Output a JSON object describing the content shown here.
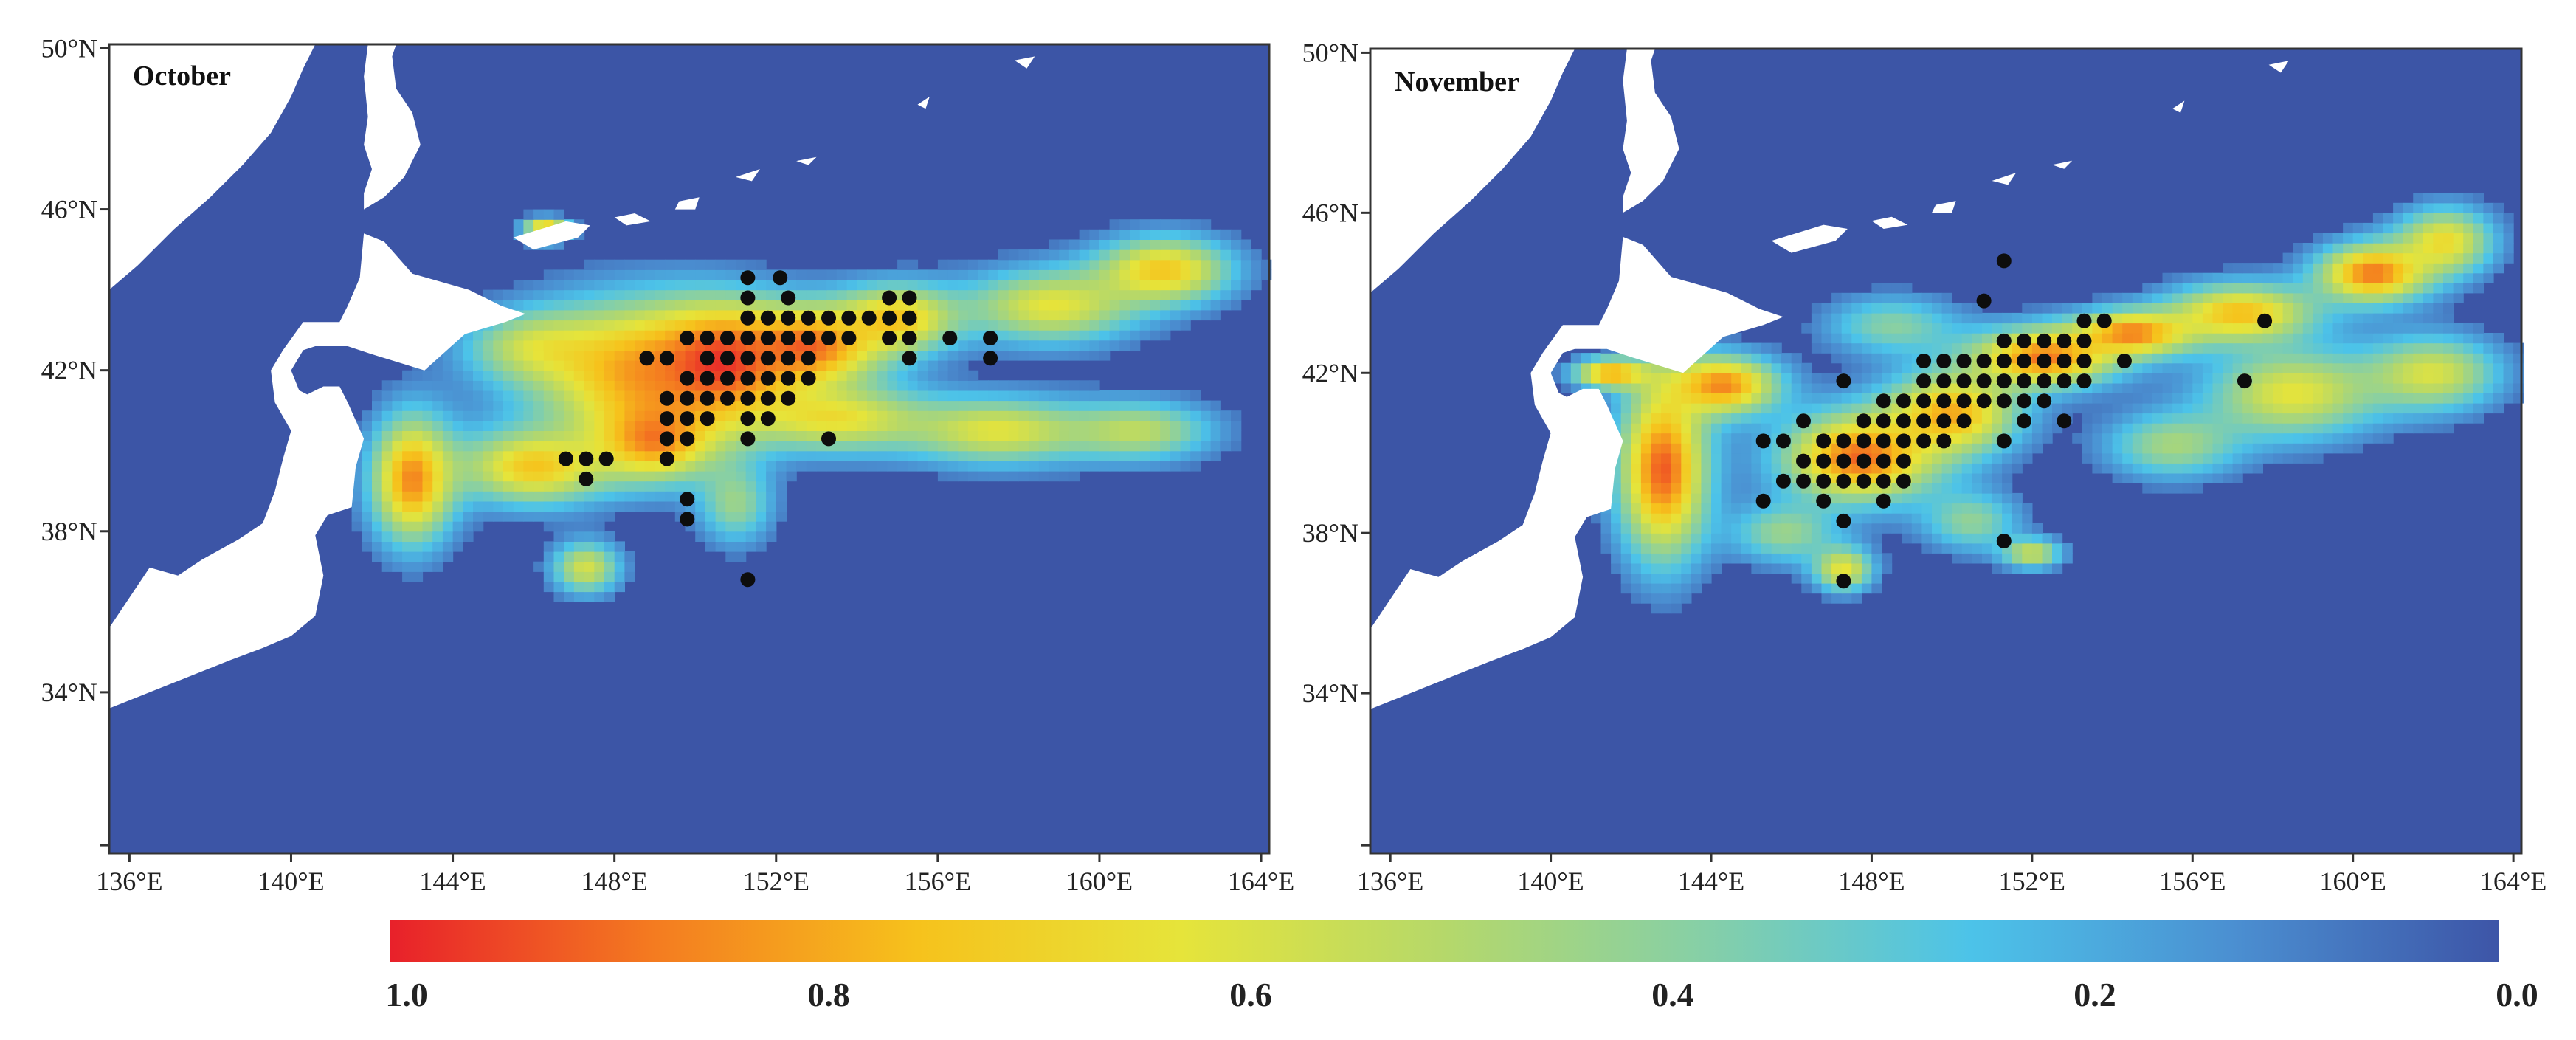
{
  "panels": [
    {
      "title": "October",
      "lon_range": [
        135.5,
        164.2
      ],
      "lat_range": [
        30.0,
        50.1
      ],
      "x_ticks": [
        136,
        140,
        144,
        148,
        152,
        156,
        160,
        164
      ],
      "x_tick_labels": [
        "136°E",
        "140°E",
        "144°E",
        "148°E",
        "152°E",
        "156°E",
        "160°E",
        "164°E"
      ],
      "y_ticks": [
        34,
        38,
        42,
        46,
        50
      ],
      "y_tick_labels": [
        "34°N",
        "38°N",
        "42°N",
        "46°N",
        "50°N"
      ],
      "blobs": [
        {
          "lon": 148.5,
          "lat": 42.0,
          "rx": 3.0,
          "ry": 1.9,
          "v": 0.75
        },
        {
          "lon": 150.6,
          "lat": 42.2,
          "rx": 2.0,
          "ry": 1.5,
          "v": 0.95
        },
        {
          "lon": 152.8,
          "lat": 42.6,
          "rx": 2.0,
          "ry": 1.1,
          "v": 0.88
        },
        {
          "lon": 155.0,
          "lat": 43.3,
          "rx": 1.6,
          "ry": 0.9,
          "v": 0.7
        },
        {
          "lon": 158.8,
          "lat": 43.6,
          "rx": 2.3,
          "ry": 1.0,
          "v": 0.62
        },
        {
          "lon": 161.6,
          "lat": 44.5,
          "rx": 1.8,
          "ry": 0.9,
          "v": 0.72
        },
        {
          "lon": 143.0,
          "lat": 39.3,
          "rx": 1.1,
          "ry": 1.7,
          "v": 0.85
        },
        {
          "lon": 146.0,
          "lat": 39.6,
          "rx": 2.0,
          "ry": 1.0,
          "v": 0.72
        },
        {
          "lon": 149.0,
          "lat": 40.3,
          "rx": 1.6,
          "ry": 1.1,
          "v": 0.82
        },
        {
          "lon": 153.5,
          "lat": 40.8,
          "rx": 2.5,
          "ry": 0.9,
          "v": 0.62
        },
        {
          "lon": 157.5,
          "lat": 40.5,
          "rx": 2.4,
          "ry": 0.9,
          "v": 0.6
        },
        {
          "lon": 161.0,
          "lat": 40.5,
          "rx": 2.0,
          "ry": 0.8,
          "v": 0.5
        },
        {
          "lon": 147.3,
          "lat": 37.1,
          "rx": 0.9,
          "ry": 0.7,
          "v": 0.58
        },
        {
          "lon": 151.0,
          "lat": 38.7,
          "rx": 1.0,
          "ry": 1.1,
          "v": 0.42
        },
        {
          "lon": 146.3,
          "lat": 45.5,
          "rx": 0.6,
          "ry": 0.3,
          "v": 0.8
        },
        {
          "lon": 146.0,
          "lat": 42.6,
          "rx": 1.8,
          "ry": 0.9,
          "v": 0.45
        }
      ],
      "dots": [
        [
          151.3,
          44.3
        ],
        [
          152.1,
          44.3
        ],
        [
          151.3,
          43.8
        ],
        [
          152.3,
          43.8
        ],
        [
          154.8,
          43.8
        ],
        [
          155.3,
          43.8
        ],
        [
          151.3,
          43.3
        ],
        [
          151.8,
          43.3
        ],
        [
          152.3,
          43.3
        ],
        [
          152.8,
          43.3
        ],
        [
          153.3,
          43.3
        ],
        [
          153.8,
          43.3
        ],
        [
          154.3,
          43.3
        ],
        [
          154.8,
          43.3
        ],
        [
          155.3,
          43.3
        ],
        [
          149.8,
          42.8
        ],
        [
          150.3,
          42.8
        ],
        [
          150.8,
          42.8
        ],
        [
          151.3,
          42.8
        ],
        [
          151.8,
          42.8
        ],
        [
          152.3,
          42.8
        ],
        [
          152.8,
          42.8
        ],
        [
          153.3,
          42.8
        ],
        [
          153.8,
          42.8
        ],
        [
          154.8,
          42.8
        ],
        [
          155.3,
          42.8
        ],
        [
          156.3,
          42.8
        ],
        [
          157.3,
          42.8
        ],
        [
          148.8,
          42.3
        ],
        [
          149.3,
          42.3
        ],
        [
          150.3,
          42.3
        ],
        [
          150.8,
          42.3
        ],
        [
          151.3,
          42.3
        ],
        [
          151.8,
          42.3
        ],
        [
          152.3,
          42.3
        ],
        [
          152.8,
          42.3
        ],
        [
          155.3,
          42.3
        ],
        [
          157.3,
          42.3
        ],
        [
          149.8,
          41.8
        ],
        [
          150.3,
          41.8
        ],
        [
          150.8,
          41.8
        ],
        [
          151.3,
          41.8
        ],
        [
          151.8,
          41.8
        ],
        [
          152.3,
          41.8
        ],
        [
          152.8,
          41.8
        ],
        [
          149.3,
          41.3
        ],
        [
          149.8,
          41.3
        ],
        [
          150.3,
          41.3
        ],
        [
          150.8,
          41.3
        ],
        [
          151.3,
          41.3
        ],
        [
          151.8,
          41.3
        ],
        [
          152.3,
          41.3
        ],
        [
          149.3,
          40.8
        ],
        [
          149.8,
          40.8
        ],
        [
          150.3,
          40.8
        ],
        [
          151.3,
          40.8
        ],
        [
          151.8,
          40.8
        ],
        [
          149.3,
          40.3
        ],
        [
          149.8,
          40.3
        ],
        [
          151.3,
          40.3
        ],
        [
          153.3,
          40.3
        ],
        [
          146.8,
          39.8
        ],
        [
          147.3,
          39.8
        ],
        [
          147.8,
          39.8
        ],
        [
          149.3,
          39.8
        ],
        [
          147.3,
          39.3
        ],
        [
          149.8,
          38.8
        ],
        [
          149.8,
          38.3
        ],
        [
          151.3,
          36.8
        ]
      ]
    },
    {
      "title": "November",
      "lon_range": [
        135.5,
        164.2
      ],
      "lat_range": [
        30.0,
        50.1
      ],
      "x_ticks": [
        136,
        140,
        144,
        148,
        152,
        156,
        160,
        164
      ],
      "x_tick_labels": [
        "136°E",
        "140°E",
        "144°E",
        "148°E",
        "152°E",
        "156°E",
        "160°E",
        "164°E"
      ],
      "y_ticks": [
        34,
        38,
        42,
        46,
        50
      ],
      "y_tick_labels": [
        "34°N",
        "38°N",
        "42°N",
        "46°N",
        "50°N"
      ],
      "blobs": [
        {
          "lon": 142.8,
          "lat": 39.6,
          "rx": 1.2,
          "ry": 2.4,
          "v": 0.92
        },
        {
          "lon": 144.3,
          "lat": 41.7,
          "rx": 1.5,
          "ry": 0.8,
          "v": 0.85
        },
        {
          "lon": 141.5,
          "lat": 42.0,
          "rx": 1.0,
          "ry": 0.4,
          "v": 0.8
        },
        {
          "lon": 147.7,
          "lat": 39.9,
          "rx": 2.1,
          "ry": 1.2,
          "v": 0.9
        },
        {
          "lon": 150.0,
          "lat": 41.0,
          "rx": 1.8,
          "ry": 1.1,
          "v": 0.78
        },
        {
          "lon": 152.3,
          "lat": 42.4,
          "rx": 2.0,
          "ry": 0.8,
          "v": 0.88
        },
        {
          "lon": 154.5,
          "lat": 43.0,
          "rx": 1.6,
          "ry": 0.6,
          "v": 0.85
        },
        {
          "lon": 157.2,
          "lat": 43.5,
          "rx": 2.0,
          "ry": 0.8,
          "v": 0.75
        },
        {
          "lon": 160.5,
          "lat": 44.5,
          "rx": 1.5,
          "ry": 0.8,
          "v": 0.88
        },
        {
          "lon": 162.3,
          "lat": 45.3,
          "rx": 1.3,
          "ry": 0.9,
          "v": 0.65
        },
        {
          "lon": 158.5,
          "lat": 41.5,
          "rx": 2.3,
          "ry": 1.2,
          "v": 0.62
        },
        {
          "lon": 162.0,
          "lat": 42.0,
          "rx": 1.8,
          "ry": 1.0,
          "v": 0.58
        },
        {
          "lon": 155.5,
          "lat": 40.2,
          "rx": 1.8,
          "ry": 0.9,
          "v": 0.45
        },
        {
          "lon": 147.3,
          "lat": 37.1,
          "rx": 0.8,
          "ry": 0.6,
          "v": 0.62
        },
        {
          "lon": 150.5,
          "lat": 38.3,
          "rx": 1.3,
          "ry": 0.8,
          "v": 0.4
        },
        {
          "lon": 145.8,
          "lat": 38.0,
          "rx": 1.4,
          "ry": 0.8,
          "v": 0.42
        },
        {
          "lon": 152.0,
          "lat": 37.5,
          "rx": 0.8,
          "ry": 0.4,
          "v": 0.55
        },
        {
          "lon": 148.5,
          "lat": 43.2,
          "rx": 1.8,
          "ry": 0.8,
          "v": 0.38
        }
      ],
      "dots": [
        [
          151.3,
          44.8
        ],
        [
          150.8,
          43.8
        ],
        [
          153.3,
          43.3
        ],
        [
          153.8,
          43.3
        ],
        [
          157.8,
          43.3
        ],
        [
          151.3,
          42.8
        ],
        [
          151.8,
          42.8
        ],
        [
          152.3,
          42.8
        ],
        [
          152.8,
          42.8
        ],
        [
          153.3,
          42.8
        ],
        [
          149.3,
          42.3
        ],
        [
          149.8,
          42.3
        ],
        [
          150.3,
          42.3
        ],
        [
          150.8,
          42.3
        ],
        [
          151.3,
          42.3
        ],
        [
          151.8,
          42.3
        ],
        [
          152.3,
          42.3
        ],
        [
          152.8,
          42.3
        ],
        [
          153.3,
          42.3
        ],
        [
          154.3,
          42.3
        ],
        [
          147.3,
          41.8
        ],
        [
          149.3,
          41.8
        ],
        [
          149.8,
          41.8
        ],
        [
          150.3,
          41.8
        ],
        [
          150.8,
          41.8
        ],
        [
          151.3,
          41.8
        ],
        [
          151.8,
          41.8
        ],
        [
          152.3,
          41.8
        ],
        [
          152.8,
          41.8
        ],
        [
          153.3,
          41.8
        ],
        [
          157.3,
          41.8
        ],
        [
          148.3,
          41.3
        ],
        [
          148.8,
          41.3
        ],
        [
          149.3,
          41.3
        ],
        [
          149.8,
          41.3
        ],
        [
          150.3,
          41.3
        ],
        [
          150.8,
          41.3
        ],
        [
          151.3,
          41.3
        ],
        [
          151.8,
          41.3
        ],
        [
          152.3,
          41.3
        ],
        [
          146.3,
          40.8
        ],
        [
          147.8,
          40.8
        ],
        [
          148.3,
          40.8
        ],
        [
          148.8,
          40.8
        ],
        [
          149.3,
          40.8
        ],
        [
          149.8,
          40.8
        ],
        [
          150.3,
          40.8
        ],
        [
          151.8,
          40.8
        ],
        [
          152.8,
          40.8
        ],
        [
          145.3,
          40.3
        ],
        [
          145.8,
          40.3
        ],
        [
          146.8,
          40.3
        ],
        [
          147.3,
          40.3
        ],
        [
          147.8,
          40.3
        ],
        [
          148.3,
          40.3
        ],
        [
          148.8,
          40.3
        ],
        [
          149.3,
          40.3
        ],
        [
          149.8,
          40.3
        ],
        [
          151.3,
          40.3
        ],
        [
          146.3,
          39.8
        ],
        [
          146.8,
          39.8
        ],
        [
          147.3,
          39.8
        ],
        [
          147.8,
          39.8
        ],
        [
          148.3,
          39.8
        ],
        [
          148.8,
          39.8
        ],
        [
          145.8,
          39.3
        ],
        [
          146.3,
          39.3
        ],
        [
          146.8,
          39.3
        ],
        [
          147.3,
          39.3
        ],
        [
          147.8,
          39.3
        ],
        [
          148.3,
          39.3
        ],
        [
          148.8,
          39.3
        ],
        [
          145.3,
          38.8
        ],
        [
          146.8,
          38.8
        ],
        [
          148.3,
          38.8
        ],
        [
          147.3,
          38.3
        ],
        [
          151.3,
          37.8
        ],
        [
          147.3,
          36.8
        ]
      ]
    }
  ],
  "land": {
    "main_island": [
      [
        135.5,
        33.6
      ],
      [
        136.5,
        34.0
      ],
      [
        137.5,
        34.4
      ],
      [
        138.5,
        34.8
      ],
      [
        139.3,
        35.1
      ],
      [
        140.0,
        35.4
      ],
      [
        140.6,
        35.9
      ],
      [
        140.8,
        36.9
      ],
      [
        140.6,
        37.9
      ],
      [
        140.9,
        38.4
      ],
      [
        141.5,
        38.6
      ],
      [
        141.6,
        39.6
      ],
      [
        141.8,
        40.3
      ],
      [
        141.4,
        41.2
      ],
      [
        141.2,
        41.6
      ],
      [
        140.8,
        41.6
      ],
      [
        140.4,
        41.4
      ],
      [
        140.2,
        41.5
      ],
      [
        140.0,
        42.0
      ],
      [
        140.3,
        42.5
      ],
      [
        140.6,
        42.6
      ],
      [
        141.4,
        42.6
      ],
      [
        142.0,
        42.4
      ],
      [
        143.3,
        42.0
      ],
      [
        144.3,
        42.9
      ],
      [
        145.3,
        43.2
      ],
      [
        145.8,
        43.4
      ],
      [
        145.2,
        43.6
      ],
      [
        144.4,
        44.0
      ],
      [
        143.0,
        44.4
      ],
      [
        142.3,
        45.2
      ],
      [
        141.8,
        45.4
      ],
      [
        141.7,
        44.3
      ],
      [
        141.4,
        43.6
      ],
      [
        141.2,
        43.2
      ],
      [
        140.3,
        43.2
      ],
      [
        139.8,
        42.5
      ],
      [
        139.5,
        42.0
      ],
      [
        139.6,
        41.2
      ],
      [
        140.0,
        40.5
      ],
      [
        139.8,
        39.8
      ],
      [
        139.6,
        39.0
      ],
      [
        139.3,
        38.2
      ],
      [
        138.7,
        37.8
      ],
      [
        137.8,
        37.3
      ],
      [
        137.2,
        36.9
      ],
      [
        136.5,
        37.1
      ],
      [
        135.5,
        35.6
      ]
    ],
    "northwest_coast": [
      [
        135.5,
        44.0
      ],
      [
        136.2,
        44.6
      ],
      [
        137.1,
        45.5
      ],
      [
        138.0,
        46.3
      ],
      [
        138.8,
        47.1
      ],
      [
        139.5,
        47.9
      ],
      [
        140.0,
        48.8
      ],
      [
        140.3,
        49.5
      ],
      [
        140.6,
        50.1
      ],
      [
        135.5,
        50.1
      ]
    ],
    "sakhalin": [
      [
        141.8,
        46.0
      ],
      [
        142.3,
        46.3
      ],
      [
        142.8,
        46.8
      ],
      [
        143.2,
        47.6
      ],
      [
        143.0,
        48.4
      ],
      [
        142.6,
        49.0
      ],
      [
        142.5,
        49.8
      ],
      [
        142.6,
        50.1
      ],
      [
        141.9,
        50.1
      ],
      [
        141.8,
        49.3
      ],
      [
        141.9,
        48.3
      ],
      [
        141.8,
        47.6
      ],
      [
        142.0,
        47.0
      ],
      [
        141.8,
        46.4
      ]
    ],
    "islands": [
      [
        [
          145.5,
          45.3
        ],
        [
          146.8,
          45.7
        ],
        [
          147.4,
          45.6
        ],
        [
          147.1,
          45.3
        ],
        [
          146.0,
          45.0
        ]
      ],
      [
        [
          148.0,
          45.8
        ],
        [
          148.5,
          45.9
        ],
        [
          148.9,
          45.7
        ],
        [
          148.3,
          45.6
        ]
      ],
      [
        [
          149.6,
          46.2
        ],
        [
          150.1,
          46.3
        ],
        [
          150.0,
          46.0
        ],
        [
          149.5,
          46.0
        ]
      ],
      [
        [
          151.0,
          46.8
        ],
        [
          151.6,
          47.0
        ],
        [
          151.4,
          46.7
        ]
      ],
      [
        [
          152.5,
          47.2
        ],
        [
          153.0,
          47.3
        ],
        [
          152.8,
          47.1
        ]
      ],
      [
        [
          155.5,
          48.6
        ],
        [
          155.8,
          48.8
        ],
        [
          155.7,
          48.5
        ]
      ],
      [
        [
          157.9,
          49.7
        ],
        [
          158.4,
          49.8
        ],
        [
          158.2,
          49.5
        ]
      ]
    ]
  },
  "colorbar": {
    "stops": [
      "#e8202a",
      "#f47b20",
      "#f6c21c",
      "#e6e43a",
      "#b5d86a",
      "#85cfa8",
      "#4cc3e9",
      "#4b8fd1",
      "#3d55a7"
    ],
    "ocean_base": "#3c55a6",
    "land_color": "#ffffff",
    "dot_color": "#0d0d0d",
    "labels": [
      "1.0",
      "0.8",
      "0.6",
      "0.4",
      "0.2",
      "0.0"
    ]
  }
}
